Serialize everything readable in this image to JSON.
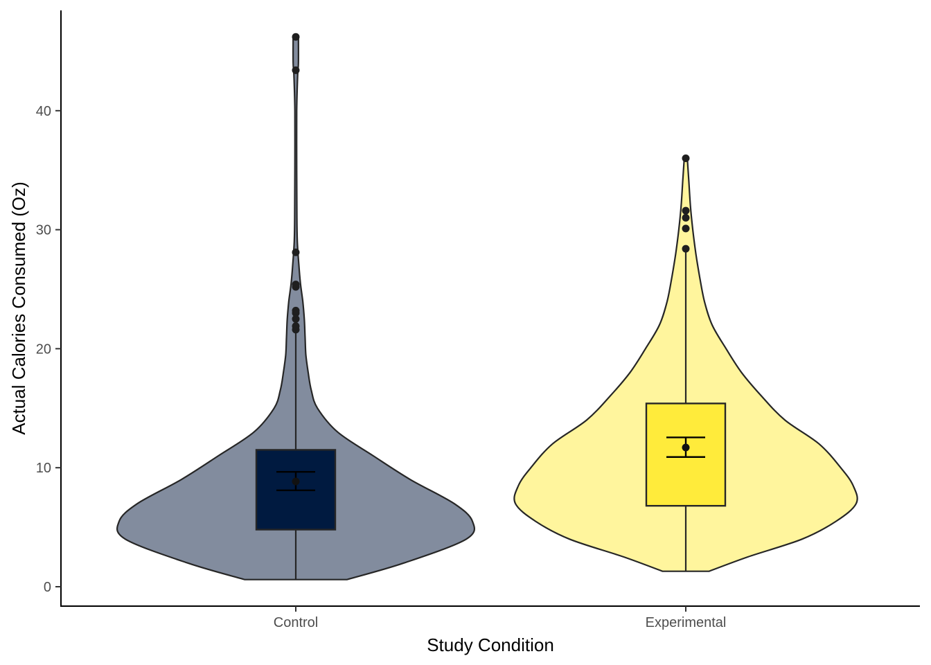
{
  "chart_data": {
    "type": "violin",
    "title": "",
    "xlabel": "Study Condition",
    "ylabel": "Actual Calories Consumed (Oz)",
    "ylim": [
      -1.6,
      48.5
    ],
    "yticks": [
      0,
      10,
      20,
      30,
      40
    ],
    "grid": false,
    "legend": "none",
    "categories": [
      "Control",
      "Experimental"
    ],
    "groups": [
      {
        "category": "Control",
        "violin_color": "#828c9e",
        "box_color": "#001a40",
        "range": [
          0.6,
          46.3
        ],
        "box": {
          "q1": 4.8,
          "median": 7.9,
          "q3": 11.5,
          "whisker_low": 0.6,
          "whisker_high": 21.5
        },
        "mean": 8.85,
        "ci": [
          8.1,
          9.65
        ],
        "outliers": [
          21.6,
          21.9,
          22.5,
          23.0,
          23.2,
          25.2,
          25.4,
          28.1,
          43.4,
          46.2
        ],
        "density": [
          [
            0.6,
            0.33
          ],
          [
            2.0,
            0.7
          ],
          [
            4.0,
            1.1
          ],
          [
            5.5,
            1.14
          ],
          [
            7.0,
            1.02
          ],
          [
            9.0,
            0.74
          ],
          [
            11.0,
            0.5
          ],
          [
            13.0,
            0.27
          ],
          [
            15.0,
            0.14
          ],
          [
            16.5,
            0.1
          ],
          [
            18.0,
            0.08
          ],
          [
            19.5,
            0.065
          ],
          [
            21.0,
            0.06
          ],
          [
            22.5,
            0.055
          ],
          [
            24.0,
            0.045
          ],
          [
            25.5,
            0.03
          ],
          [
            27.0,
            0.02
          ],
          [
            29.0,
            0.01
          ],
          [
            31.0,
            0.007
          ],
          [
            35.0,
            0.006
          ],
          [
            40.0,
            0.006
          ],
          [
            43.0,
            0.012
          ],
          [
            44.0,
            0.017
          ],
          [
            46.3,
            0.017
          ]
        ]
      },
      {
        "category": "Experimental",
        "violin_color": "#fff59d",
        "box_color": "#ffeb3b",
        "range": [
          1.3,
          36.0
        ],
        "box": {
          "q1": 6.8,
          "median": 10.8,
          "q3": 15.4,
          "whisker_low": 1.3,
          "whisker_high": 28.3
        },
        "mean": 11.7,
        "ci": [
          10.9,
          12.55
        ],
        "outliers": [
          28.4,
          30.1,
          31.0,
          31.6,
          36.0
        ],
        "density": [
          [
            1.3,
            0.15
          ],
          [
            2.5,
            0.4
          ],
          [
            4.0,
            0.75
          ],
          [
            5.5,
            0.97
          ],
          [
            7.0,
            1.1
          ],
          [
            8.5,
            1.08
          ],
          [
            10.0,
            1.0
          ],
          [
            12.0,
            0.86
          ],
          [
            14.0,
            0.64
          ],
          [
            16.0,
            0.49
          ],
          [
            18.0,
            0.36
          ],
          [
            20.0,
            0.26
          ],
          [
            22.0,
            0.17
          ],
          [
            24.0,
            0.12
          ],
          [
            26.0,
            0.09
          ],
          [
            28.0,
            0.065
          ],
          [
            30.0,
            0.045
          ],
          [
            32.0,
            0.03
          ],
          [
            34.0,
            0.02
          ],
          [
            36.0,
            0.01
          ]
        ]
      }
    ]
  }
}
